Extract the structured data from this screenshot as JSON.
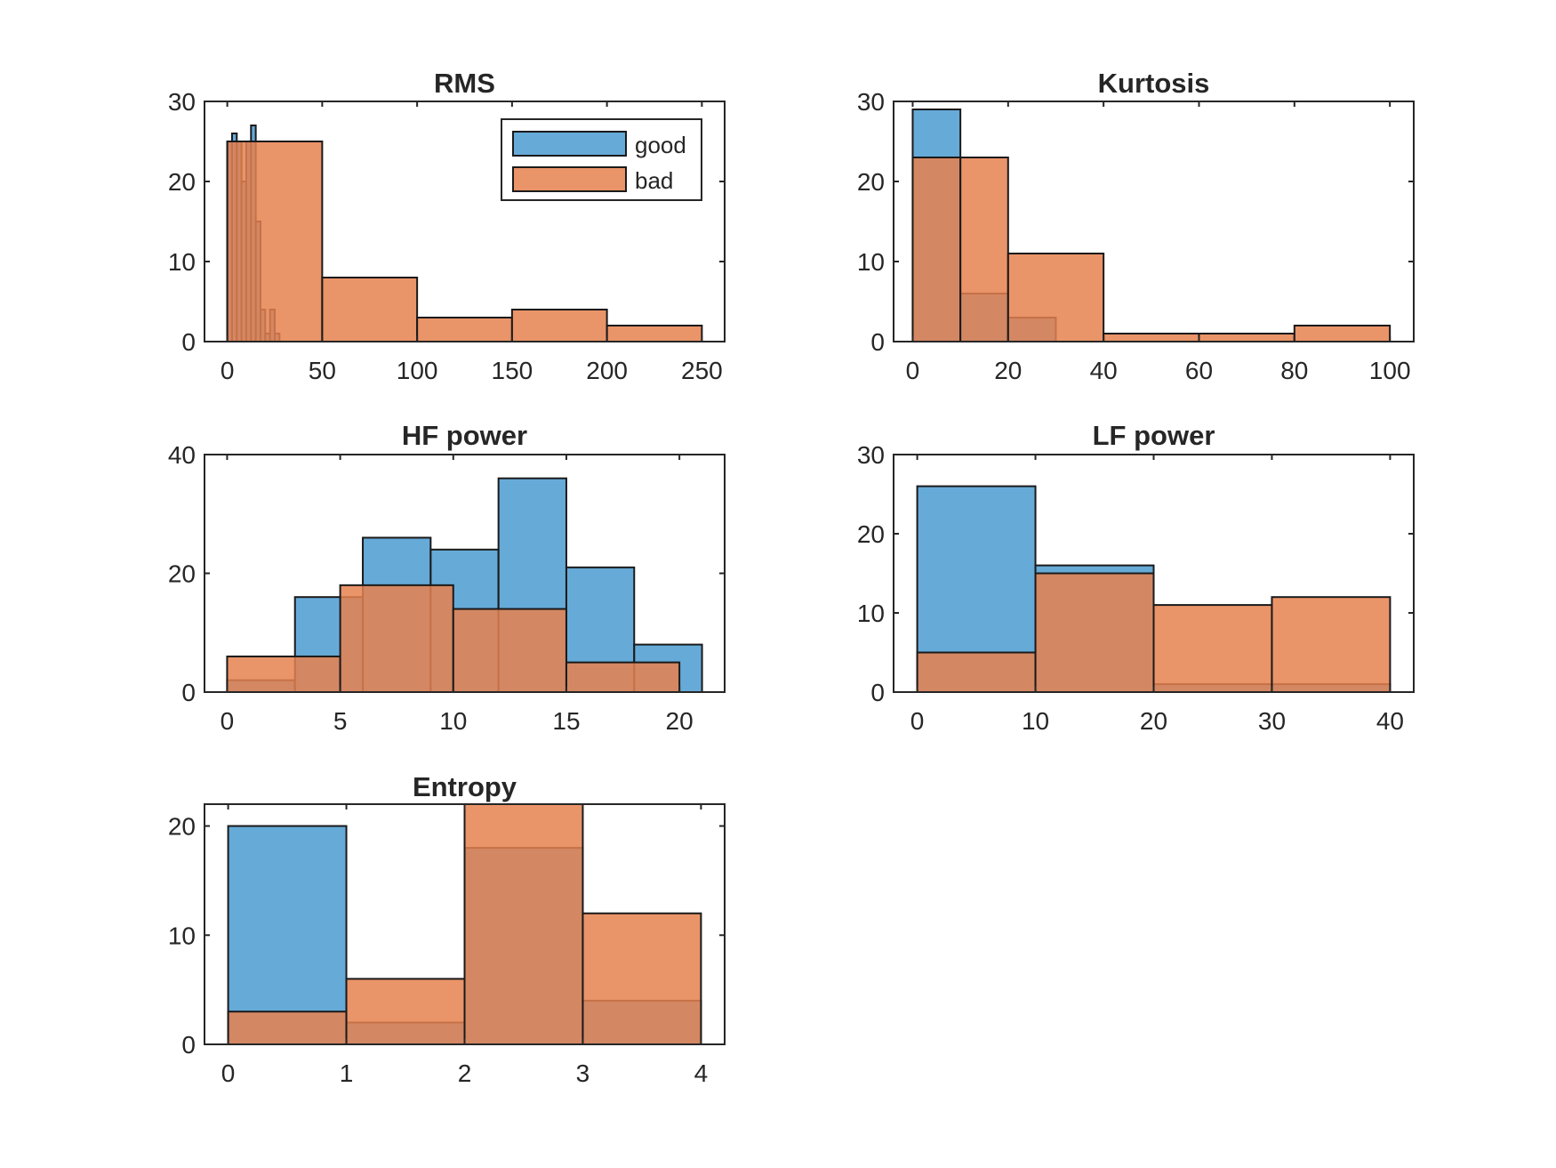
{
  "legend": {
    "labels": [
      "good",
      "bad"
    ],
    "placement": "top-right",
    "panel": 0
  },
  "colors": {
    "good": "#4b9bd1",
    "bad": "#e6814f",
    "overlap": "#a0604e",
    "edge": "#1a1a1a",
    "axis": "#262626"
  },
  "chart_data": [
    {
      "type": "bar",
      "title": "RMS",
      "xlim": [
        -12,
        262
      ],
      "ylim": [
        0,
        30
      ],
      "xticks": [
        0,
        50,
        100,
        150,
        200,
        250
      ],
      "yticks": [
        0,
        10,
        20,
        30
      ],
      "series": [
        {
          "name": "good",
          "bin_edges": [
            0,
            2.5,
            5,
            7.5,
            10,
            12.5,
            15,
            17.5,
            20,
            22.5,
            25,
            27.5,
            30
          ],
          "counts": [
            25,
            26,
            25,
            20,
            25,
            27,
            15,
            4,
            1,
            4,
            1,
            0
          ]
        },
        {
          "name": "bad",
          "bin_edges": [
            0,
            50,
            100,
            150,
            200,
            250
          ],
          "counts": [
            25,
            8,
            3,
            4,
            2
          ]
        }
      ]
    },
    {
      "type": "bar",
      "title": "Kurtosis",
      "xlim": [
        -4,
        105
      ],
      "ylim": [
        0,
        30
      ],
      "xticks": [
        0,
        20,
        40,
        60,
        80,
        100
      ],
      "yticks": [
        0,
        10,
        20,
        30
      ],
      "series": [
        {
          "name": "good",
          "bin_edges": [
            0,
            10,
            20,
            30
          ],
          "counts": [
            29,
            6,
            3
          ]
        },
        {
          "name": "bad",
          "bin_edges": [
            0,
            10,
            20,
            40,
            60,
            80,
            100
          ],
          "counts": [
            23,
            23,
            11,
            1,
            1,
            2
          ]
        }
      ]
    },
    {
      "type": "bar",
      "title": "HF power",
      "xlim": [
        -1,
        22
      ],
      "ylim": [
        0,
        40
      ],
      "xticks": [
        0,
        5,
        10,
        15,
        20
      ],
      "yticks": [
        0,
        20,
        40
      ],
      "series": [
        {
          "name": "good",
          "bin_edges": [
            0,
            3,
            6,
            9,
            12,
            15,
            18,
            21
          ],
          "counts": [
            2,
            16,
            26,
            24,
            36,
            21,
            8
          ]
        },
        {
          "name": "bad",
          "bin_edges": [
            0,
            5,
            10,
            15,
            20
          ],
          "counts": [
            6,
            18,
            14,
            5
          ]
        }
      ]
    },
    {
      "type": "bar",
      "title": "LF power",
      "xlim": [
        -2,
        42
      ],
      "ylim": [
        0,
        30
      ],
      "xticks": [
        0,
        10,
        20,
        30,
        40
      ],
      "yticks": [
        0,
        10,
        20,
        30
      ],
      "series": [
        {
          "name": "good",
          "bin_edges": [
            0,
            10,
            20,
            30,
            40
          ],
          "counts": [
            26,
            16,
            1,
            1
          ]
        },
        {
          "name": "bad",
          "bin_edges": [
            0,
            10,
            20,
            30,
            40
          ],
          "counts": [
            5,
            15,
            11,
            12
          ]
        }
      ]
    },
    {
      "type": "bar",
      "title": "Entropy",
      "xlim": [
        -0.2,
        4.2
      ],
      "ylim": [
        0,
        22
      ],
      "xticks": [
        0,
        1,
        2,
        3,
        4
      ],
      "yticks": [
        0,
        10,
        20
      ],
      "series": [
        {
          "name": "good",
          "bin_edges": [
            0,
            1,
            2,
            3,
            4
          ],
          "counts": [
            20,
            2,
            18,
            4
          ]
        },
        {
          "name": "bad",
          "bin_edges": [
            0,
            1,
            2,
            3,
            4
          ],
          "counts": [
            3,
            6,
            22,
            12
          ]
        }
      ]
    }
  ]
}
